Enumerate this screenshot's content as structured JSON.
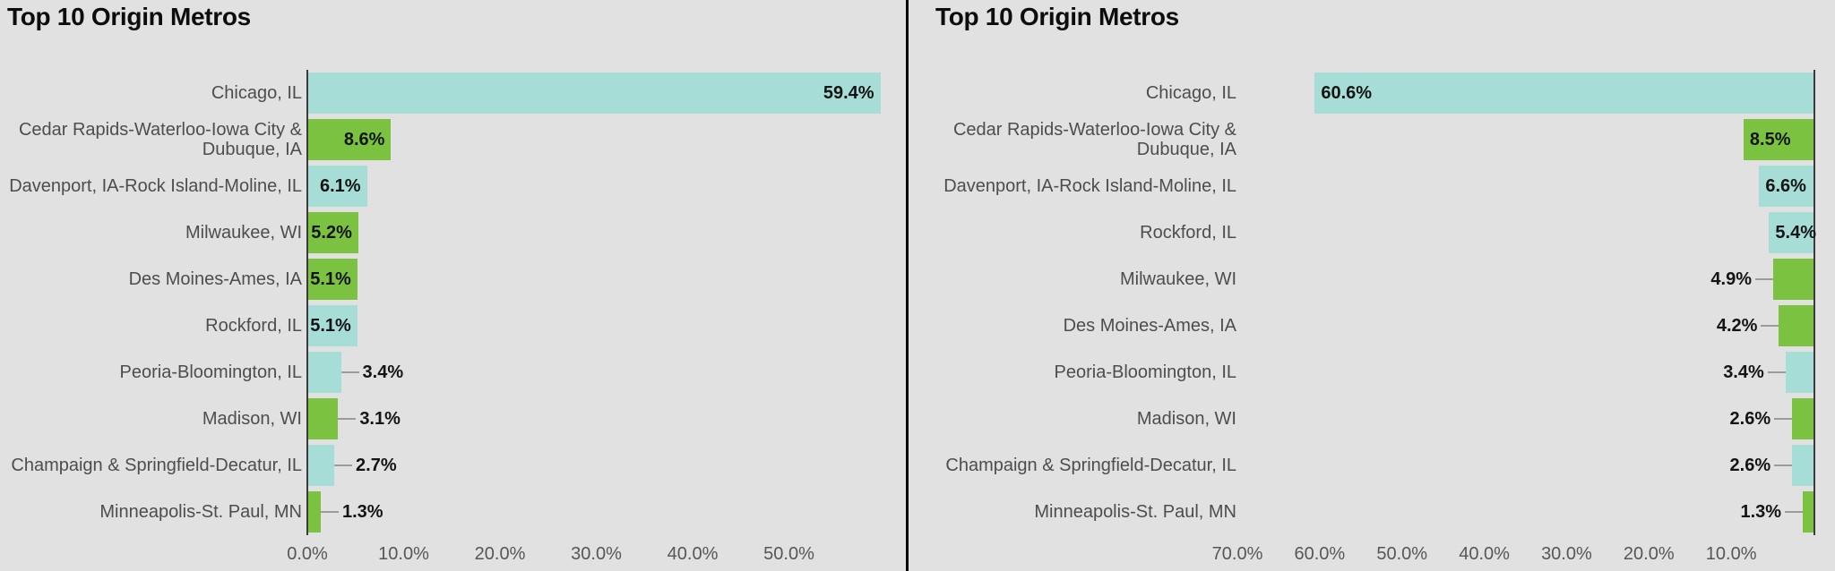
{
  "background": "#e1e1e1",
  "divider_color": "#000000",
  "palette": {
    "teal": "#a6ded7",
    "green": "#7cc241",
    "axis_line": "#3c3c3c",
    "leader_line": "#9b9b9b",
    "category_text": "#4d4d4d",
    "tick_text": "#565656",
    "value_text": "#141414",
    "title_text": "#0d0d0d"
  },
  "chart_data": [
    {
      "type": "bar",
      "orientation": "horizontal",
      "direction": "ltr",
      "title": "Top 10 Origin Metros",
      "categories": [
        "Chicago, IL",
        "Cedar Rapids-Waterloo-Iowa City & Dubuque, IA",
        "Davenport, IA-Rock Island-Moline, IL",
        "Milwaukee, WI",
        "Des Moines-Ames, IA",
        "Rockford, IL",
        "Peoria-Bloomington, IL",
        "Madison, WI",
        "Champaign & Springfield-Decatur, IL",
        "Minneapolis-St. Paul, MN"
      ],
      "values": [
        59.4,
        8.6,
        6.1,
        5.2,
        5.1,
        5.1,
        3.4,
        3.1,
        2.7,
        1.3
      ],
      "value_labels": [
        "59.4%",
        "8.6%",
        "6.1%",
        "5.2%",
        "5.1%",
        "5.1%",
        "3.4%",
        "3.1%",
        "2.7%",
        "1.3%"
      ],
      "bar_colors": [
        "#a6ded7",
        "#7cc241",
        "#a6ded7",
        "#7cc241",
        "#7cc241",
        "#a6ded7",
        "#a6ded7",
        "#7cc241",
        "#a6ded7",
        "#7cc241"
      ],
      "xlabel": "",
      "ylabel": "",
      "axis_max": 60,
      "xtick_values": [
        0,
        10,
        20,
        30,
        40,
        50
      ],
      "xtick_labels": [
        "0.0%",
        "10.0%",
        "20.0%",
        "30.0%",
        "40.0%",
        "50.0%"
      ],
      "gridlines": false,
      "legend": null
    },
    {
      "type": "bar",
      "orientation": "horizontal",
      "direction": "rtl",
      "title": "Top 10 Origin Metros",
      "categories": [
        "Chicago, IL",
        "Cedar Rapids-Waterloo-Iowa City & Dubuque, IA",
        "Davenport, IA-Rock Island-Moline, IL",
        "Rockford, IL",
        "Milwaukee, WI",
        "Des Moines-Ames, IA",
        "Peoria-Bloomington, IL",
        "Madison, WI",
        "Champaign & Springfield-Decatur, IL",
        "Minneapolis-St. Paul, MN"
      ],
      "values": [
        60.6,
        8.5,
        6.6,
        5.4,
        4.9,
        4.2,
        3.4,
        2.6,
        2.6,
        1.3
      ],
      "value_labels": [
        "60.6%",
        "8.5%",
        "6.6%",
        "5.4%",
        "4.9%",
        "4.2%",
        "3.4%",
        "2.6%",
        "2.6%",
        "1.3%"
      ],
      "bar_colors": [
        "#a6ded7",
        "#7cc241",
        "#a6ded7",
        "#a6ded7",
        "#7cc241",
        "#7cc241",
        "#a6ded7",
        "#7cc241",
        "#a6ded7",
        "#7cc241"
      ],
      "xlabel": "",
      "ylabel": "",
      "axis_max": 70,
      "xtick_values": [
        70,
        60,
        50,
        40,
        30,
        20,
        10
      ],
      "xtick_labels": [
        "70.0%",
        "60.0%",
        "50.0%",
        "40.0%",
        "30.0%",
        "20.0%",
        "10.0%"
      ],
      "gridlines": false,
      "legend": null
    }
  ]
}
